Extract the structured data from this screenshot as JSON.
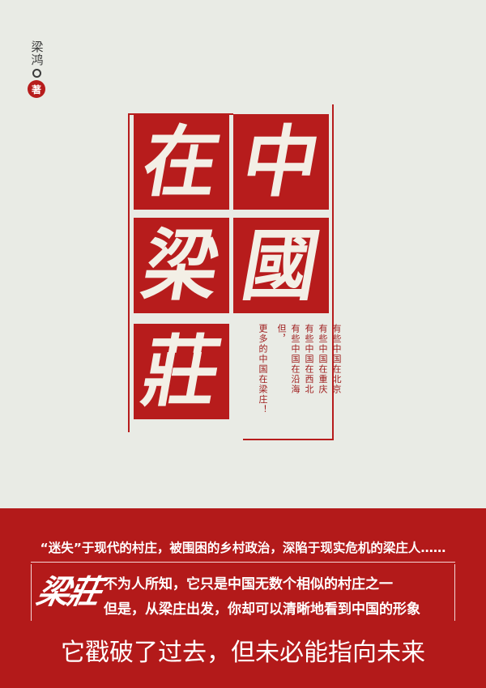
{
  "author": {
    "name": "梁鸿",
    "role": "著"
  },
  "title": {
    "chars": [
      "中",
      "在",
      "國",
      "梁",
      "莊"
    ]
  },
  "poem": {
    "lines": [
      "有些中国在北京",
      "有些中国在重庆",
      "有些中国在西北",
      "有些中国在沿海",
      "但，",
      "更多的中国在梁庄！"
    ]
  },
  "blurb": {
    "line1": "“迷失”于现代的村庄，被围困的乡村政治，深陷于现实危机的梁庄人……",
    "brand": "梁莊",
    "line2": "不为人所知，它只是中国无数个相似的村庄之一",
    "line3": "但是，从梁庄出发，你却可以清晰地看到中国的形象",
    "tagline": "它戳破了过去，但未必能指向未来"
  },
  "colors": {
    "background": "#e9ebe5",
    "accent_red": "#b71c1c",
    "text_white": "#ffffff"
  }
}
